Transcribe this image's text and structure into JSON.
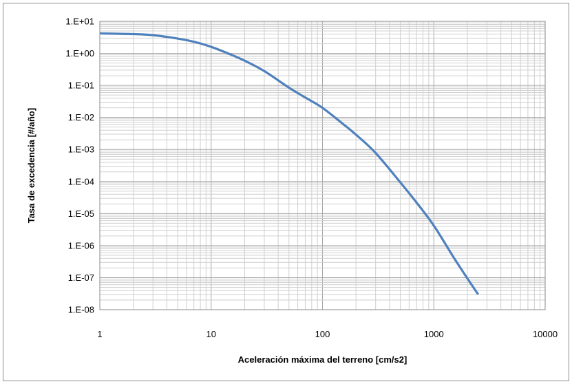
{
  "chart_data": {
    "type": "line",
    "xlabel": "Aceleración máxima del terreno [cm/s2]",
    "ylabel": "Tasa de excedencia [#/año]",
    "x_scale": "log",
    "y_scale": "log",
    "xlim": [
      1,
      10000
    ],
    "ylim": [
      1e-08,
      10
    ],
    "x_tick_labels": [
      "1",
      "10",
      "100",
      "1000",
      "10000"
    ],
    "y_tick_labels": [
      "1.E+01",
      "1.E+00",
      "1.E-01",
      "1.E-02",
      "1.E-03",
      "1.E-04",
      "1.E-05",
      "1.E-06",
      "1.E-07",
      "1.E-08"
    ],
    "grid": true,
    "legend": "none",
    "series": [
      {
        "color": "#4f81bd",
        "x": [
          1,
          2,
          3,
          5,
          7,
          10,
          15,
          20,
          30,
          50,
          70,
          100,
          150,
          200,
          300,
          500,
          700,
          1000,
          1500,
          2000,
          2500
        ],
        "y": [
          4.2,
          4.0,
          3.7,
          2.9,
          2.3,
          1.6,
          0.92,
          0.59,
          0.28,
          0.085,
          0.042,
          0.02,
          0.0066,
          0.0029,
          0.00078,
          9.4e-05,
          2.2e-05,
          4.2e-06,
          4.4e-07,
          9.5e-08,
          3e-08
        ]
      }
    ]
  }
}
